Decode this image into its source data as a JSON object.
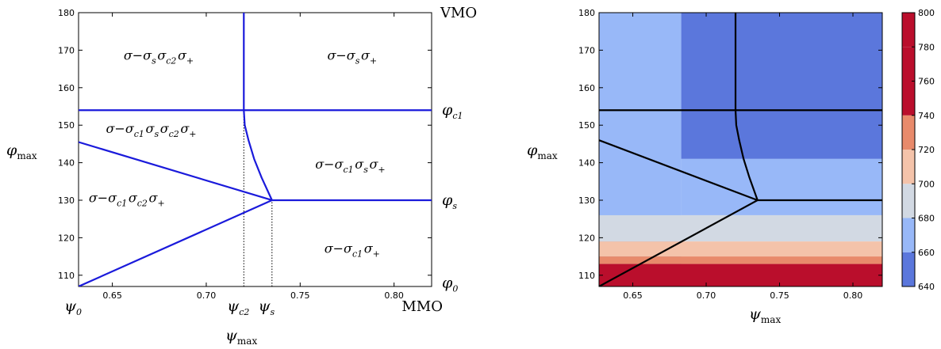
{
  "chart_data": [
    {
      "type": "line",
      "title": "",
      "xlabel": "ψ_max",
      "ylabel": "φ_max",
      "xlim": [
        0.632,
        0.82
      ],
      "ylim": [
        107,
        180
      ],
      "xticks": [
        0.65,
        0.7,
        0.75,
        0.8
      ],
      "xtick_labels": [
        "0.65",
        "0.70",
        "0.75",
        "0.80"
      ],
      "yticks": [
        110,
        120,
        130,
        140,
        150,
        160,
        170,
        180
      ],
      "ytick_labels": [
        "110",
        "120",
        "130",
        "140",
        "150",
        "160",
        "170",
        "180"
      ],
      "color": "#1a1adb",
      "series": [
        {
          "x": [
            0.72,
            0.72,
            0.7205,
            0.7225,
            0.7255,
            0.7295,
            0.735
          ],
          "y": [
            180,
            154,
            150,
            146,
            141,
            136,
            130
          ]
        },
        {
          "x": [
            0.632,
            0.82
          ],
          "y": [
            154,
            154
          ]
        },
        {
          "x": [
            0.632,
            0.735
          ],
          "y": [
            145.5,
            130
          ]
        },
        {
          "x": [
            0.632,
            0.735
          ],
          "y": [
            107,
            130
          ]
        },
        {
          "x": [
            0.735,
            0.82
          ],
          "y": [
            130,
            130
          ]
        }
      ],
      "dotted_guides": [
        {
          "x": 0.72,
          "y_from": 107,
          "y_to": 154
        },
        {
          "x": 0.735,
          "y_from": 107,
          "y_to": 130
        }
      ],
      "region_labels": [
        {
          "x": 0.675,
          "y": 168.5,
          "parts": [
            [
              "σ",
              ""
            ],
            [
              "−",
              ""
            ],
            [
              "σ",
              "s"
            ],
            [
              "σ",
              "c2"
            ],
            [
              "σ",
              "+"
            ]
          ]
        },
        {
          "x": 0.778,
          "y": 168.5,
          "parts": [
            [
              "σ",
              ""
            ],
            [
              "−",
              ""
            ],
            [
              "σ",
              "s"
            ],
            [
              "σ",
              "+"
            ]
          ]
        },
        {
          "x": 0.671,
          "y": 149,
          "parts": [
            [
              "σ",
              ""
            ],
            [
              "−",
              ""
            ],
            [
              "σ",
              "c1"
            ],
            [
              "σ",
              "s"
            ],
            [
              "σ",
              "c2"
            ],
            [
              "σ",
              "+"
            ]
          ]
        },
        {
          "x": 0.777,
          "y": 139.5,
          "parts": [
            [
              "σ",
              ""
            ],
            [
              "−",
              ""
            ],
            [
              "σ",
              "c1"
            ],
            [
              "σ",
              "s"
            ],
            [
              "σ",
              "+"
            ]
          ]
        },
        {
          "x": 0.658,
          "y": 130.5,
          "parts": [
            [
              "σ",
              ""
            ],
            [
              "−",
              ""
            ],
            [
              "σ",
              "c1"
            ],
            [
              "σ",
              "c2"
            ],
            [
              "σ",
              "+"
            ]
          ]
        },
        {
          "x": 0.778,
          "y": 117,
          "parts": [
            [
              "σ",
              ""
            ],
            [
              "−",
              ""
            ],
            [
              "σ",
              "c1"
            ],
            [
              "σ",
              "+"
            ]
          ]
        }
      ],
      "right_labels": [
        {
          "text": "VMO",
          "y": 180
        },
        {
          "math": "φ",
          "sub": "c1",
          "y": 154
        },
        {
          "math": "φ",
          "sub": "s",
          "y": 130
        },
        {
          "math": "φ",
          "sub": "0",
          "y": 108
        }
      ],
      "bottom_labels": [
        {
          "math": "ψ",
          "sub": "0",
          "x": 0.632
        },
        {
          "math": "ψ",
          "sub": "c2",
          "x": 0.72
        },
        {
          "math": "ψ",
          "sub": "s",
          "x": 0.735
        },
        {
          "text": "MMO",
          "x": 0.815
        }
      ]
    },
    {
      "type": "heatmap",
      "title": "",
      "xlabel": "ψ_max",
      "ylabel": "φ_max",
      "xlim": [
        0.627,
        0.82
      ],
      "ylim": [
        107,
        180
      ],
      "xticks": [
        0.65,
        0.7,
        0.75,
        0.8
      ],
      "xtick_labels": [
        "0.65",
        "0.70",
        "0.75",
        "0.80"
      ],
      "yticks": [
        110,
        120,
        130,
        140,
        150,
        160,
        170,
        180
      ],
      "ytick_labels": [
        "110",
        "120",
        "130",
        "140",
        "150",
        "160",
        "170",
        "180"
      ],
      "colorbar": {
        "levels": [
          640,
          660,
          680,
          700,
          720,
          740,
          760,
          780,
          800
        ],
        "tick_labels": [
          "640",
          "660",
          "680",
          "700",
          "720",
          "740",
          "760",
          "780",
          "800"
        ],
        "colors": [
          "#5b77dc",
          "#98b8f8",
          "#d2d9e3",
          "#f4c3aa",
          "#e88a6b",
          "#ba0e2c",
          "#ba0e2c",
          "#ba0e2c"
        ]
      },
      "regions": [
        {
          "level": "660-680",
          "x_range": [
            0.627,
            0.683
          ],
          "y_range": [
            107,
            180
          ]
        },
        {
          "level": "640-660",
          "x_range": [
            0.683,
            0.82
          ],
          "y_range": [
            141,
            180
          ]
        },
        {
          "level": "660-680",
          "x_range": [
            0.683,
            0.82
          ],
          "y_range": [
            126,
            141
          ]
        },
        {
          "level": "680-700",
          "x_range": [
            0.627,
            0.82
          ],
          "y_range": [
            119,
            126
          ]
        },
        {
          "level": "700-720",
          "x_range": [
            0.627,
            0.82
          ],
          "y_range": [
            115,
            119
          ]
        },
        {
          "level": "720-740",
          "x_range": [
            0.627,
            0.82
          ],
          "y_range": [
            113,
            115
          ]
        },
        {
          "level": "740-800",
          "x_range": [
            0.627,
            0.82
          ],
          "y_range": [
            107,
            113
          ]
        }
      ],
      "series": [
        {
          "x": [
            0.72,
            0.72,
            0.7205,
            0.7225,
            0.7255,
            0.7295,
            0.735
          ],
          "y": [
            180,
            154,
            150,
            146,
            141,
            136,
            130
          ]
        },
        {
          "x": [
            0.627,
            0.82
          ],
          "y": [
            154,
            154
          ]
        },
        {
          "x": [
            0.627,
            0.735
          ],
          "y": [
            146,
            130
          ]
        },
        {
          "x": [
            0.627,
            0.735
          ],
          "y": [
            107,
            130
          ]
        },
        {
          "x": [
            0.735,
            0.82
          ],
          "y": [
            130,
            130
          ]
        }
      ],
      "color": "#000000"
    }
  ]
}
